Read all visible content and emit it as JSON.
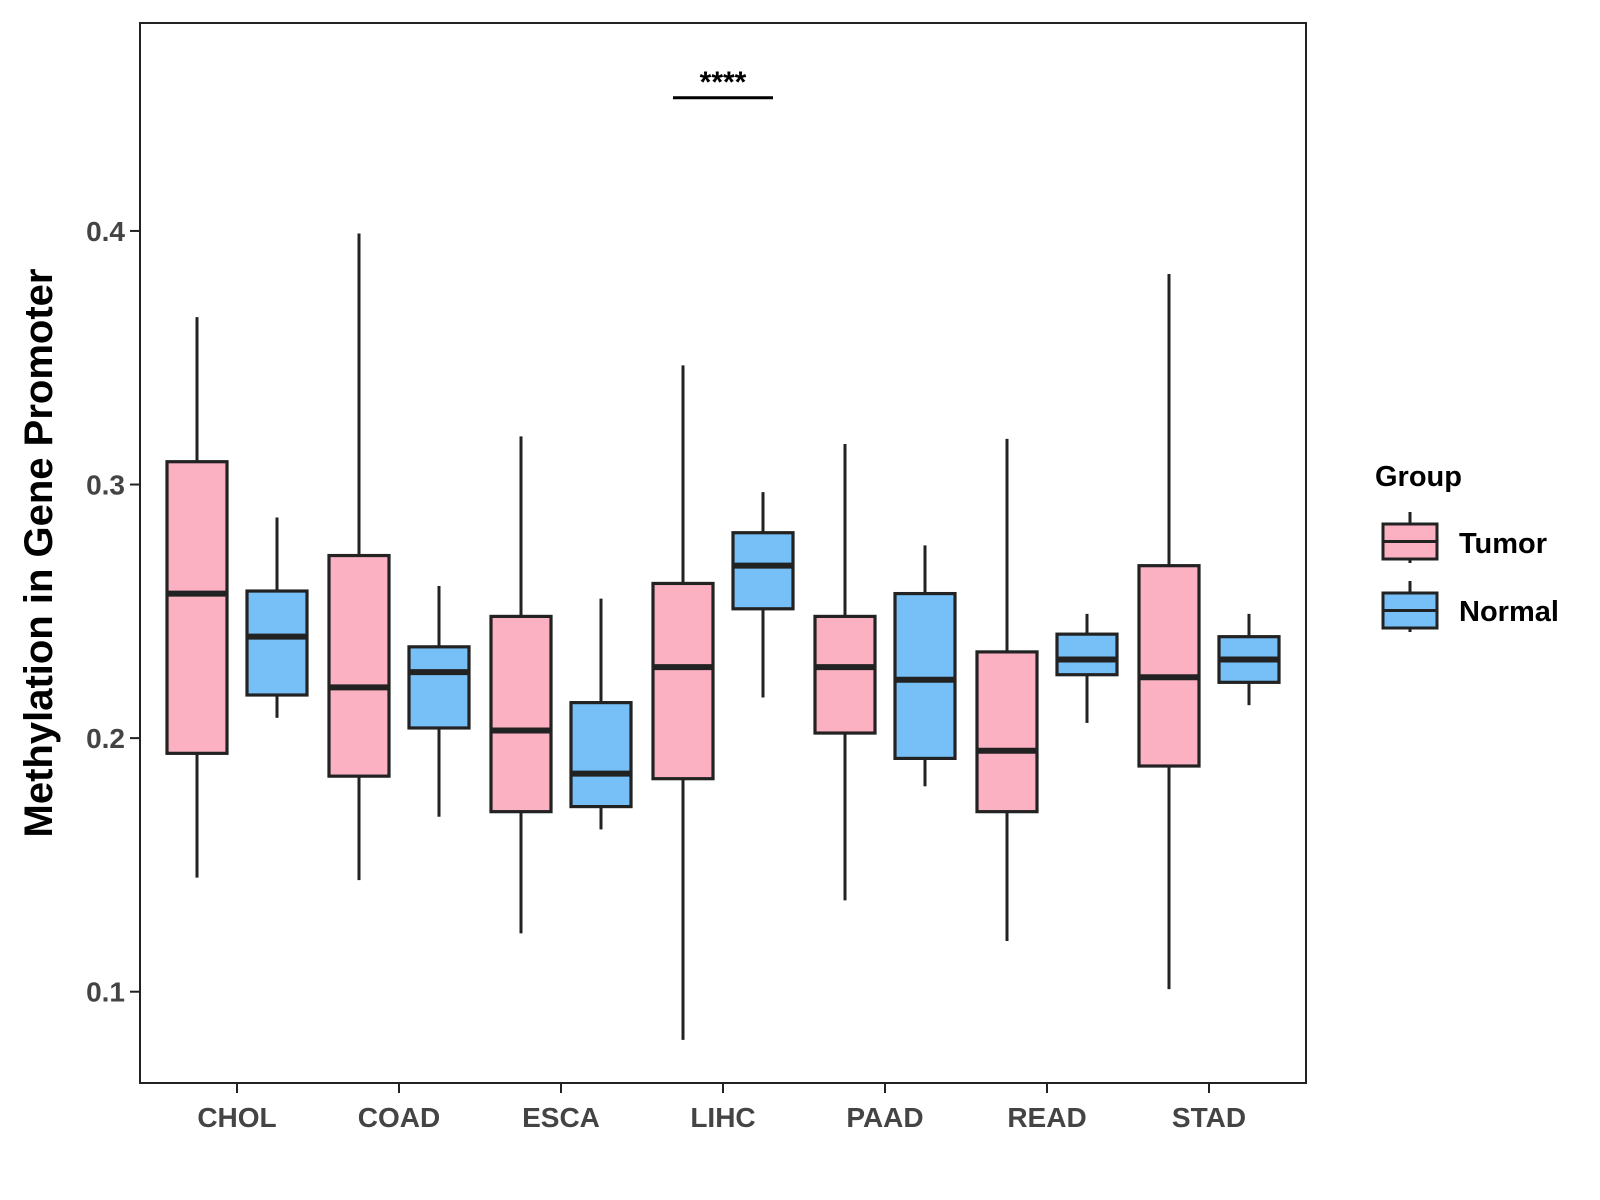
{
  "chart_data": {
    "type": "boxplot",
    "title": "",
    "xlabel": "",
    "ylabel": "Methylation in Gene Promoter",
    "ylim": [
      0.064,
      0.482
    ],
    "yticks": [
      0.1,
      0.2,
      0.3,
      0.4
    ],
    "ytick_labels": [
      "0.1",
      "0.2",
      "0.3",
      "0.4"
    ],
    "categories": [
      "CHOL",
      "COAD",
      "ESCA",
      "LIHC",
      "PAAD",
      "READ",
      "STAD"
    ],
    "legend": {
      "title": "Group",
      "position": "right",
      "entries": [
        "Tumor",
        "Normal"
      ]
    },
    "colors": {
      "Tumor": "#fbb1c2",
      "Normal": "#76c0f7",
      "stroke": "#222222"
    },
    "series": [
      {
        "name": "Tumor",
        "boxes": [
          {
            "category": "CHOL",
            "whisker_low": 0.145,
            "q1": 0.194,
            "median": 0.257,
            "q3": 0.309,
            "whisker_high": 0.366
          },
          {
            "category": "COAD",
            "whisker_low": 0.144,
            "q1": 0.185,
            "median": 0.22,
            "q3": 0.272,
            "whisker_high": 0.399
          },
          {
            "category": "ESCA",
            "whisker_low": 0.123,
            "q1": 0.171,
            "median": 0.203,
            "q3": 0.248,
            "whisker_high": 0.319
          },
          {
            "category": "LIHC",
            "whisker_low": 0.081,
            "q1": 0.184,
            "median": 0.228,
            "q3": 0.261,
            "whisker_high": 0.347
          },
          {
            "category": "PAAD",
            "whisker_low": 0.136,
            "q1": 0.202,
            "median": 0.228,
            "q3": 0.248,
            "whisker_high": 0.316
          },
          {
            "category": "READ",
            "whisker_low": 0.12,
            "q1": 0.171,
            "median": 0.195,
            "q3": 0.234,
            "whisker_high": 0.318
          },
          {
            "category": "STAD",
            "whisker_low": 0.101,
            "q1": 0.189,
            "median": 0.224,
            "q3": 0.268,
            "whisker_high": 0.383
          }
        ]
      },
      {
        "name": "Normal",
        "boxes": [
          {
            "category": "CHOL",
            "whisker_low": 0.208,
            "q1": 0.217,
            "median": 0.24,
            "q3": 0.258,
            "whisker_high": 0.287
          },
          {
            "category": "COAD",
            "whisker_low": 0.169,
            "q1": 0.204,
            "median": 0.226,
            "q3": 0.236,
            "whisker_high": 0.26
          },
          {
            "category": "ESCA",
            "whisker_low": 0.164,
            "q1": 0.173,
            "median": 0.186,
            "q3": 0.214,
            "whisker_high": 0.255
          },
          {
            "category": "LIHC",
            "whisker_low": 0.216,
            "q1": 0.251,
            "median": 0.268,
            "q3": 0.281,
            "whisker_high": 0.297
          },
          {
            "category": "PAAD",
            "whisker_low": 0.181,
            "q1": 0.192,
            "median": 0.223,
            "q3": 0.257,
            "whisker_high": 0.276
          },
          {
            "category": "READ",
            "whisker_low": 0.206,
            "q1": 0.225,
            "median": 0.231,
            "q3": 0.241,
            "whisker_high": 0.249
          },
          {
            "category": "STAD",
            "whisker_low": 0.213,
            "q1": 0.222,
            "median": 0.231,
            "q3": 0.24,
            "whisker_high": 0.249
          }
        ]
      }
    ],
    "annotations": [
      {
        "category": "LIHC",
        "text": "****",
        "y": 0.4525
      }
    ]
  }
}
